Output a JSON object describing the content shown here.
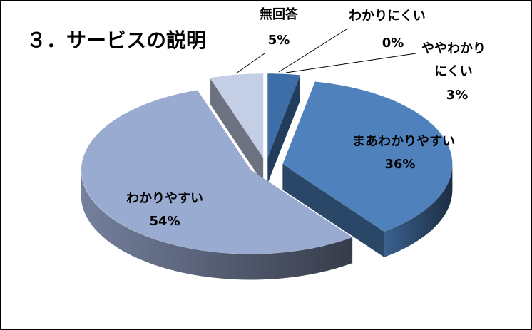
{
  "chart_data": {
    "type": "pie",
    "title": "３．サービスの説明",
    "categories": [
      "わかりにくい",
      "ややわかりにくい",
      "まあわかりやすい",
      "わかりやすい",
      "無回答"
    ],
    "values": [
      0,
      3,
      36,
      54,
      5
    ],
    "value_labels": [
      "0%",
      "3%",
      "36%",
      "54%",
      "5%"
    ],
    "colors": [
      "#2f5a8c",
      "#3d6ea8",
      "#4f81bd",
      "#9aabd1",
      "#c4cfe6"
    ]
  }
}
